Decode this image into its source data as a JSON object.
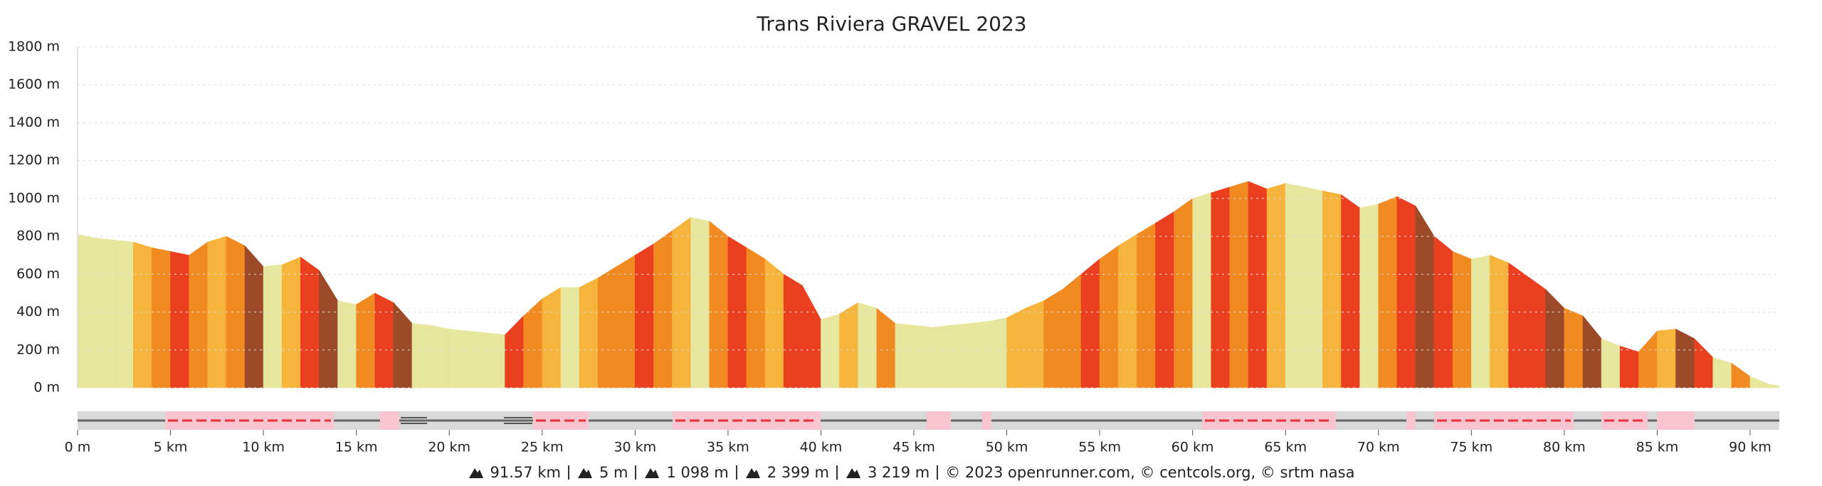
{
  "chart_data": {
    "type": "area",
    "title": "Trans Riviera GRAVEL 2023",
    "x": [
      0,
      1,
      2,
      3,
      4,
      5,
      6,
      7,
      8,
      9,
      10,
      11,
      12,
      13,
      14,
      15,
      16,
      17,
      18,
      19,
      20,
      21,
      22,
      23,
      24,
      25,
      26,
      27,
      28,
      29,
      30,
      31,
      32,
      33,
      34,
      35,
      36,
      37,
      38,
      39,
      40,
      41,
      42,
      43,
      44,
      45,
      46,
      47,
      48,
      49,
      50,
      51,
      52,
      53,
      54,
      55,
      56,
      57,
      58,
      59,
      60,
      61,
      62,
      63,
      64,
      65,
      66,
      67,
      68,
      69,
      70,
      71,
      72,
      73,
      74,
      75,
      76,
      77,
      78,
      79,
      80,
      81,
      82,
      83,
      84,
      85,
      86,
      87,
      88,
      89,
      90,
      91,
      91.57
    ],
    "values": [
      810,
      790,
      780,
      770,
      740,
      720,
      700,
      770,
      800,
      750,
      640,
      650,
      690,
      620,
      460,
      440,
      500,
      450,
      340,
      330,
      310,
      300,
      290,
      280,
      380,
      470,
      530,
      530,
      580,
      640,
      700,
      760,
      830,
      900,
      880,
      800,
      740,
      680,
      600,
      540,
      360,
      390,
      450,
      420,
      340,
      330,
      320,
      330,
      340,
      350,
      370,
      420,
      460,
      520,
      600,
      680,
      750,
      810,
      870,
      930,
      1000,
      1030,
      1060,
      1090,
      1050,
      1080,
      1060,
      1040,
      1020,
      950,
      970,
      1010,
      960,
      800,
      720,
      680,
      700,
      660,
      590,
      520,
      420,
      380,
      260,
      220,
      190,
      300,
      310,
      260,
      160,
      130,
      60,
      20,
      10
    ],
    "segment_colors": [
      "#e6e69c",
      "#e6e69c",
      "#e6e69c",
      "#f7b43c",
      "#f28a22",
      "#ea4020",
      "#f28a22",
      "#f7b43c",
      "#f28a22",
      "#9c4a28",
      "#e6e69c",
      "#f7b43c",
      "#ea4020",
      "#9c4a28",
      "#e6e69c",
      "#f28a22",
      "#ea4020",
      "#9c4a28",
      "#e6e69c",
      "#e6e69c",
      "#e6e69c",
      "#e6e69c",
      "#e6e69c",
      "#ea4020",
      "#f28a22",
      "#f7b43c",
      "#e6e69c",
      "#f7b43c",
      "#f28a22",
      "#f28a22",
      "#ea4020",
      "#f28a22",
      "#f7b43c",
      "#e6e69c",
      "#f28a22",
      "#ea4020",
      "#f28a22",
      "#f7b43c",
      "#ea4020",
      "#ea4020",
      "#e6e69c",
      "#f7b43c",
      "#e6e69c",
      "#f28a22",
      "#e6e69c",
      "#e6e69c",
      "#e6e69c",
      "#e6e69c",
      "#e6e69c",
      "#e6e69c",
      "#f7b43c",
      "#f7b43c",
      "#f28a22",
      "#f28a22",
      "#ea4020",
      "#f28a22",
      "#f7b43c",
      "#f28a22",
      "#ea4020",
      "#f28a22",
      "#e6e69c",
      "#ea4020",
      "#f28a22",
      "#ea4020",
      "#f7b43c",
      "#e6e69c",
      "#e6e69c",
      "#f7b43c",
      "#ea4020",
      "#e6e69c",
      "#f28a22",
      "#ea4020",
      "#9c4a28",
      "#ea4020",
      "#f28a22",
      "#e6e69c",
      "#f7b43c",
      "#ea4020",
      "#ea4020",
      "#9c4a28",
      "#f28a22",
      "#9c4a28",
      "#e6e69c",
      "#ea4020",
      "#f28a22",
      "#f7b43c",
      "#9c4a28",
      "#ea4020",
      "#e6e69c",
      "#f28a22",
      "#e6e69c",
      "#e6e69c"
    ],
    "xlim": [
      0,
      91.57
    ],
    "ylim": [
      0,
      1800
    ],
    "xticks": [
      {
        "value": 0,
        "label": "0 m"
      },
      {
        "value": 5,
        "label": "5 km"
      },
      {
        "value": 10,
        "label": "10 km"
      },
      {
        "value": 15,
        "label": "15 km"
      },
      {
        "value": 20,
        "label": "20 km"
      },
      {
        "value": 25,
        "label": "25 km"
      },
      {
        "value": 30,
        "label": "30 km"
      },
      {
        "value": 35,
        "label": "35 km"
      },
      {
        "value": 40,
        "label": "40 km"
      },
      {
        "value": 45,
        "label": "45 km"
      },
      {
        "value": 50,
        "label": "50 km"
      },
      {
        "value": 55,
        "label": "55 km"
      },
      {
        "value": 60,
        "label": "60 km"
      },
      {
        "value": 65,
        "label": "65 km"
      },
      {
        "value": 70,
        "label": "70 km"
      },
      {
        "value": 75,
        "label": "75 km"
      },
      {
        "value": 80,
        "label": "80 km"
      },
      {
        "value": 85,
        "label": "85 km"
      },
      {
        "value": 90,
        "label": "90 km"
      }
    ],
    "yticks": [
      {
        "value": 0,
        "label": "0 m"
      },
      {
        "value": 200,
        "label": "200 m"
      },
      {
        "value": 400,
        "label": "400 m"
      },
      {
        "value": 600,
        "label": "600 m"
      },
      {
        "value": 800,
        "label": "800 m"
      },
      {
        "value": 1000,
        "label": "1000 m"
      },
      {
        "value": 1200,
        "label": "1200 m"
      },
      {
        "value": 1400,
        "label": "1400 m"
      },
      {
        "value": 1600,
        "label": "1600 m"
      },
      {
        "value": 1800,
        "label": "1800 m"
      }
    ],
    "grid": true,
    "footer": {
      "stats": [
        "91.57 km",
        "5 m",
        "1 098 m",
        "2 399 m",
        "3 219 m"
      ],
      "credit": "© 2023 openrunner.com, © centcols.org, © srtm nasa"
    }
  }
}
